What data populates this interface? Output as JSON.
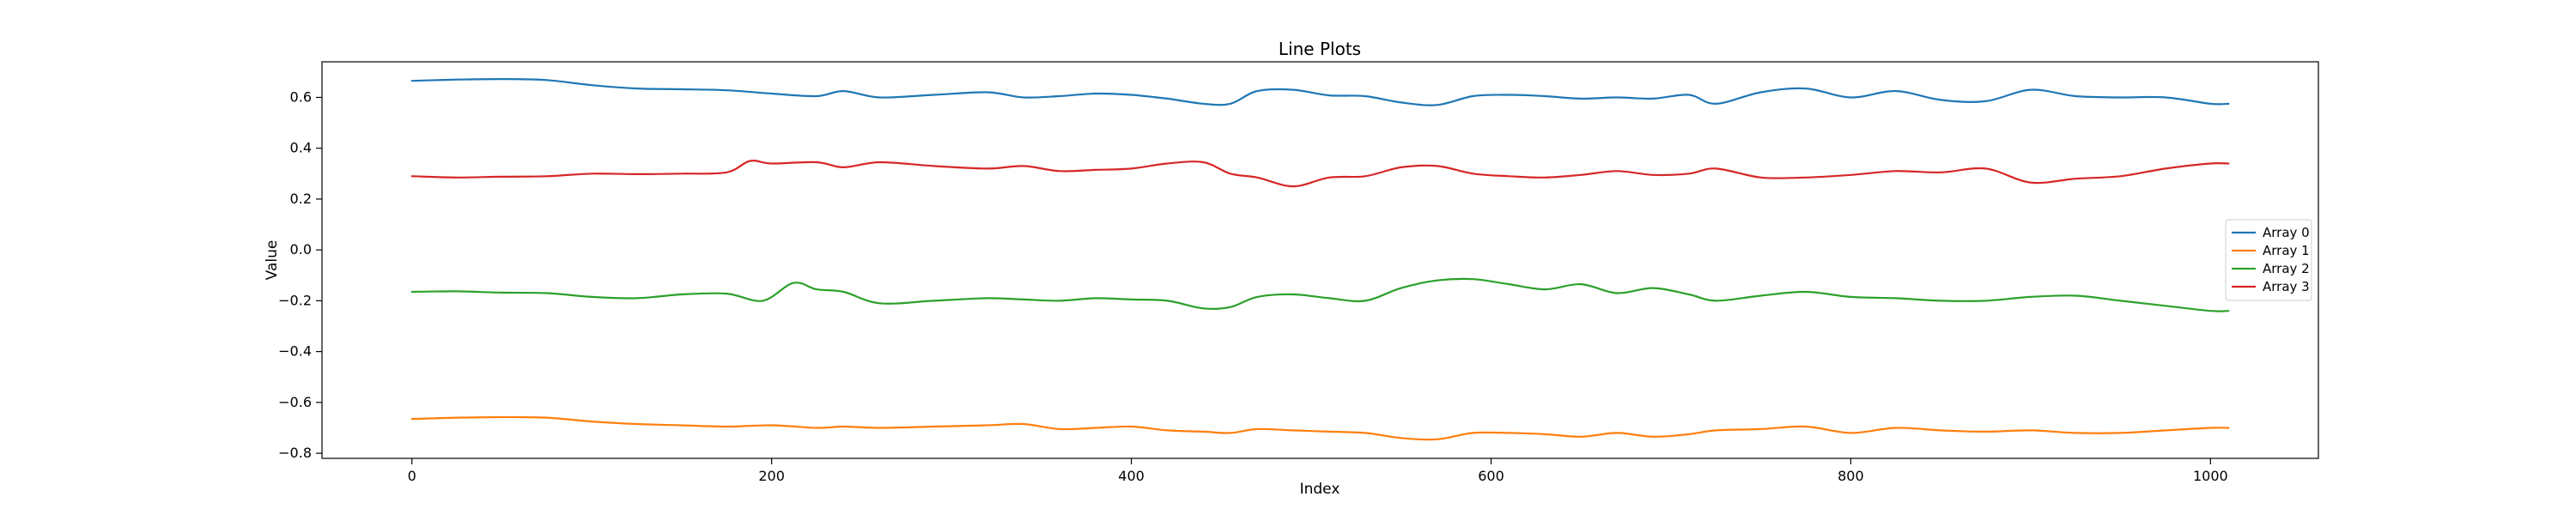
{
  "chart_data": {
    "type": "line",
    "title": "Line Plots",
    "xlabel": "Index",
    "ylabel": "Value",
    "xlim": [
      -50,
      1060
    ],
    "ylim": [
      -0.82,
      0.74
    ],
    "xticks": [
      0,
      200,
      400,
      600,
      800,
      1000
    ],
    "yticks": [
      -0.8,
      -0.6,
      -0.4,
      -0.2,
      0.0,
      0.2,
      0.4,
      0.6
    ],
    "legend_location": "center-right",
    "grid": false,
    "series": [
      {
        "name": "Array 0",
        "color": "#1f77b4",
        "x": [
          0,
          25,
          50,
          75,
          100,
          125,
          150,
          175,
          200,
          225,
          240,
          260,
          290,
          320,
          340,
          360,
          380,
          400,
          420,
          440,
          455,
          470,
          490,
          510,
          530,
          550,
          570,
          590,
          610,
          630,
          650,
          670,
          690,
          710,
          725,
          750,
          775,
          800,
          825,
          850,
          875,
          900,
          925,
          950,
          975,
          1000,
          1010
        ],
        "values": [
          0.665,
          0.67,
          0.672,
          0.668,
          0.648,
          0.635,
          0.632,
          0.628,
          0.615,
          0.605,
          0.625,
          0.6,
          0.61,
          0.62,
          0.6,
          0.605,
          0.615,
          0.61,
          0.595,
          0.575,
          0.575,
          0.625,
          0.63,
          0.608,
          0.605,
          0.58,
          0.57,
          0.605,
          0.61,
          0.605,
          0.595,
          0.6,
          0.595,
          0.61,
          0.575,
          0.62,
          0.635,
          0.6,
          0.625,
          0.59,
          0.585,
          0.63,
          0.605,
          0.6,
          0.6,
          0.575,
          0.575
        ]
      },
      {
        "name": "Array 1",
        "color": "#ff7f0e",
        "x": [
          0,
          25,
          50,
          75,
          100,
          125,
          150,
          175,
          200,
          225,
          240,
          260,
          290,
          320,
          340,
          360,
          380,
          400,
          420,
          440,
          455,
          470,
          490,
          510,
          530,
          550,
          570,
          590,
          610,
          630,
          650,
          670,
          690,
          710,
          725,
          750,
          775,
          800,
          825,
          850,
          875,
          900,
          925,
          950,
          975,
          1000,
          1010
        ],
        "values": [
          -0.665,
          -0.66,
          -0.658,
          -0.66,
          -0.675,
          -0.685,
          -0.69,
          -0.695,
          -0.69,
          -0.7,
          -0.695,
          -0.7,
          -0.695,
          -0.69,
          -0.685,
          -0.705,
          -0.7,
          -0.695,
          -0.71,
          -0.715,
          -0.72,
          -0.705,
          -0.71,
          -0.715,
          -0.72,
          -0.74,
          -0.745,
          -0.72,
          -0.72,
          -0.725,
          -0.735,
          -0.72,
          -0.735,
          -0.725,
          -0.71,
          -0.705,
          -0.695,
          -0.72,
          -0.7,
          -0.71,
          -0.715,
          -0.71,
          -0.72,
          -0.72,
          -0.71,
          -0.7,
          -0.7
        ]
      },
      {
        "name": "Array 2",
        "color": "#2ca02c",
        "x": [
          0,
          25,
          50,
          75,
          100,
          125,
          150,
          175,
          195,
          212,
          225,
          240,
          260,
          290,
          320,
          340,
          360,
          380,
          400,
          420,
          440,
          455,
          470,
          490,
          510,
          530,
          550,
          570,
          590,
          610,
          630,
          650,
          670,
          690,
          710,
          725,
          750,
          775,
          800,
          825,
          850,
          875,
          900,
          925,
          950,
          975,
          1000,
          1010
        ],
        "values": [
          -0.165,
          -0.163,
          -0.168,
          -0.17,
          -0.185,
          -0.19,
          -0.175,
          -0.172,
          -0.2,
          -0.13,
          -0.155,
          -0.165,
          -0.21,
          -0.2,
          -0.19,
          -0.195,
          -0.2,
          -0.19,
          -0.195,
          -0.2,
          -0.23,
          -0.225,
          -0.185,
          -0.175,
          -0.19,
          -0.2,
          -0.15,
          -0.12,
          -0.115,
          -0.135,
          -0.155,
          -0.135,
          -0.17,
          -0.15,
          -0.175,
          -0.2,
          -0.18,
          -0.165,
          -0.185,
          -0.19,
          -0.2,
          -0.2,
          -0.185,
          -0.18,
          -0.2,
          -0.22,
          -0.24,
          -0.24
        ]
      },
      {
        "name": "Array 3",
        "color": "#d62728",
        "x": [
          0,
          25,
          50,
          75,
          100,
          125,
          150,
          175,
          188,
          200,
          225,
          240,
          260,
          290,
          320,
          340,
          360,
          380,
          400,
          420,
          440,
          455,
          470,
          490,
          510,
          530,
          550,
          570,
          590,
          610,
          630,
          650,
          670,
          690,
          710,
          725,
          750,
          775,
          800,
          825,
          850,
          875,
          900,
          925,
          950,
          975,
          1000,
          1010
        ],
        "values": [
          0.29,
          0.285,
          0.288,
          0.29,
          0.3,
          0.298,
          0.3,
          0.305,
          0.35,
          0.34,
          0.345,
          0.325,
          0.345,
          0.33,
          0.32,
          0.33,
          0.31,
          0.315,
          0.32,
          0.34,
          0.345,
          0.3,
          0.285,
          0.25,
          0.285,
          0.29,
          0.325,
          0.33,
          0.3,
          0.29,
          0.285,
          0.295,
          0.31,
          0.295,
          0.3,
          0.32,
          0.285,
          0.285,
          0.295,
          0.31,
          0.305,
          0.32,
          0.265,
          0.28,
          0.29,
          0.32,
          0.34,
          0.34
        ]
      }
    ]
  }
}
